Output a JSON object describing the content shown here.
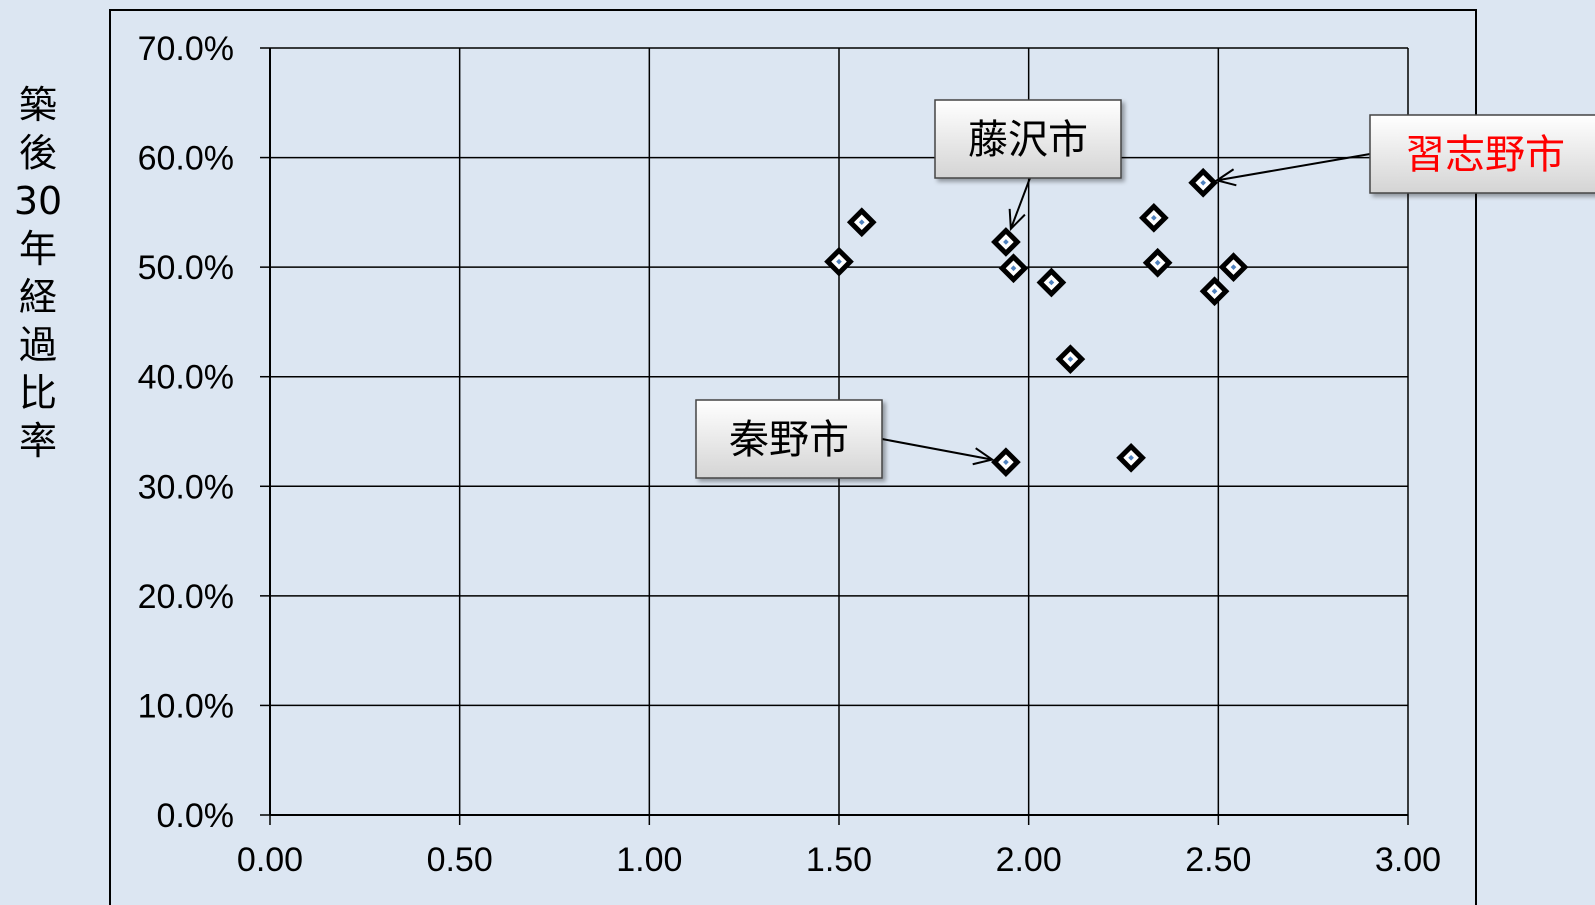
{
  "chart_data": {
    "type": "scatter",
    "ylabel": "築後30年経過比率",
    "xlabel": "",
    "xlim": [
      0,
      3
    ],
    "ylim": [
      0,
      0.7
    ],
    "x_ticks": [
      "0.00",
      "0.50",
      "1.00",
      "1.50",
      "2.00",
      "2.50",
      "3.00"
    ],
    "y_ticks": [
      "0.0%",
      "10.0%",
      "20.0%",
      "30.0%",
      "40.0%",
      "50.0%",
      "60.0%",
      "70.0%"
    ],
    "grid": true,
    "points": [
      {
        "x": 1.5,
        "y": 0.505
      },
      {
        "x": 1.56,
        "y": 0.541
      },
      {
        "x": 1.94,
        "y": 0.523
      },
      {
        "x": 1.96,
        "y": 0.499
      },
      {
        "x": 2.06,
        "y": 0.486
      },
      {
        "x": 2.11,
        "y": 0.416
      },
      {
        "x": 1.94,
        "y": 0.322
      },
      {
        "x": 2.27,
        "y": 0.326
      },
      {
        "x": 2.33,
        "y": 0.545
      },
      {
        "x": 2.34,
        "y": 0.504
      },
      {
        "x": 2.46,
        "y": 0.577
      },
      {
        "x": 2.49,
        "y": 0.478
      },
      {
        "x": 2.54,
        "y": 0.5
      }
    ],
    "annotations": [
      {
        "label": "藤沢市",
        "x": 1.94,
        "y": 0.523,
        "color": "#000000"
      },
      {
        "label": "習志野市",
        "x": 2.46,
        "y": 0.577,
        "color": "#ff0000"
      },
      {
        "label": "秦野市",
        "x": 1.94,
        "y": 0.322,
        "color": "#000000"
      }
    ],
    "colors": {
      "background": "#dce6f2",
      "marker_outer": "#000000",
      "marker_inner": "#4f81bd",
      "grid": "#000000"
    }
  }
}
